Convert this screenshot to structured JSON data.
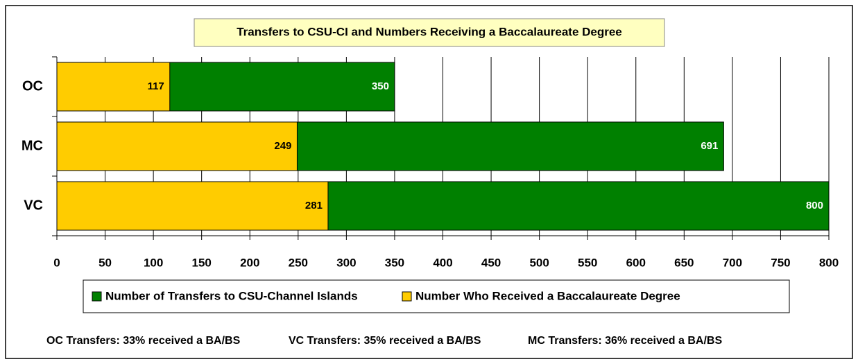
{
  "chart_data": {
    "type": "bar",
    "orientation": "horizontal",
    "overlap": true,
    "title": "Transfers to CSU-CI and Numbers Receiving a Baccalaureate Degree",
    "categories": [
      "OC",
      "MC",
      "VC"
    ],
    "series": [
      {
        "name": "Number of Transfers to CSU-Channel Islands",
        "color": "#008000",
        "label_color": "#ffffff",
        "values": [
          350,
          691,
          800
        ]
      },
      {
        "name": "Number Who Received a Baccalaureate Degree",
        "color": "#ffcc00",
        "label_color": "#000000",
        "values": [
          117,
          249,
          281
        ]
      }
    ],
    "xlim": [
      0,
      800
    ],
    "xticks": [
      0,
      50,
      100,
      150,
      200,
      250,
      300,
      350,
      400,
      450,
      500,
      550,
      600,
      650,
      700,
      750,
      800
    ],
    "grid": true,
    "legend": "bottom",
    "notes": [
      "OC Transfers: 33% received a BA/BS",
      "VC Transfers: 35% received a BA/BS",
      "MC Transfers: 36% received a BA/BS"
    ]
  }
}
